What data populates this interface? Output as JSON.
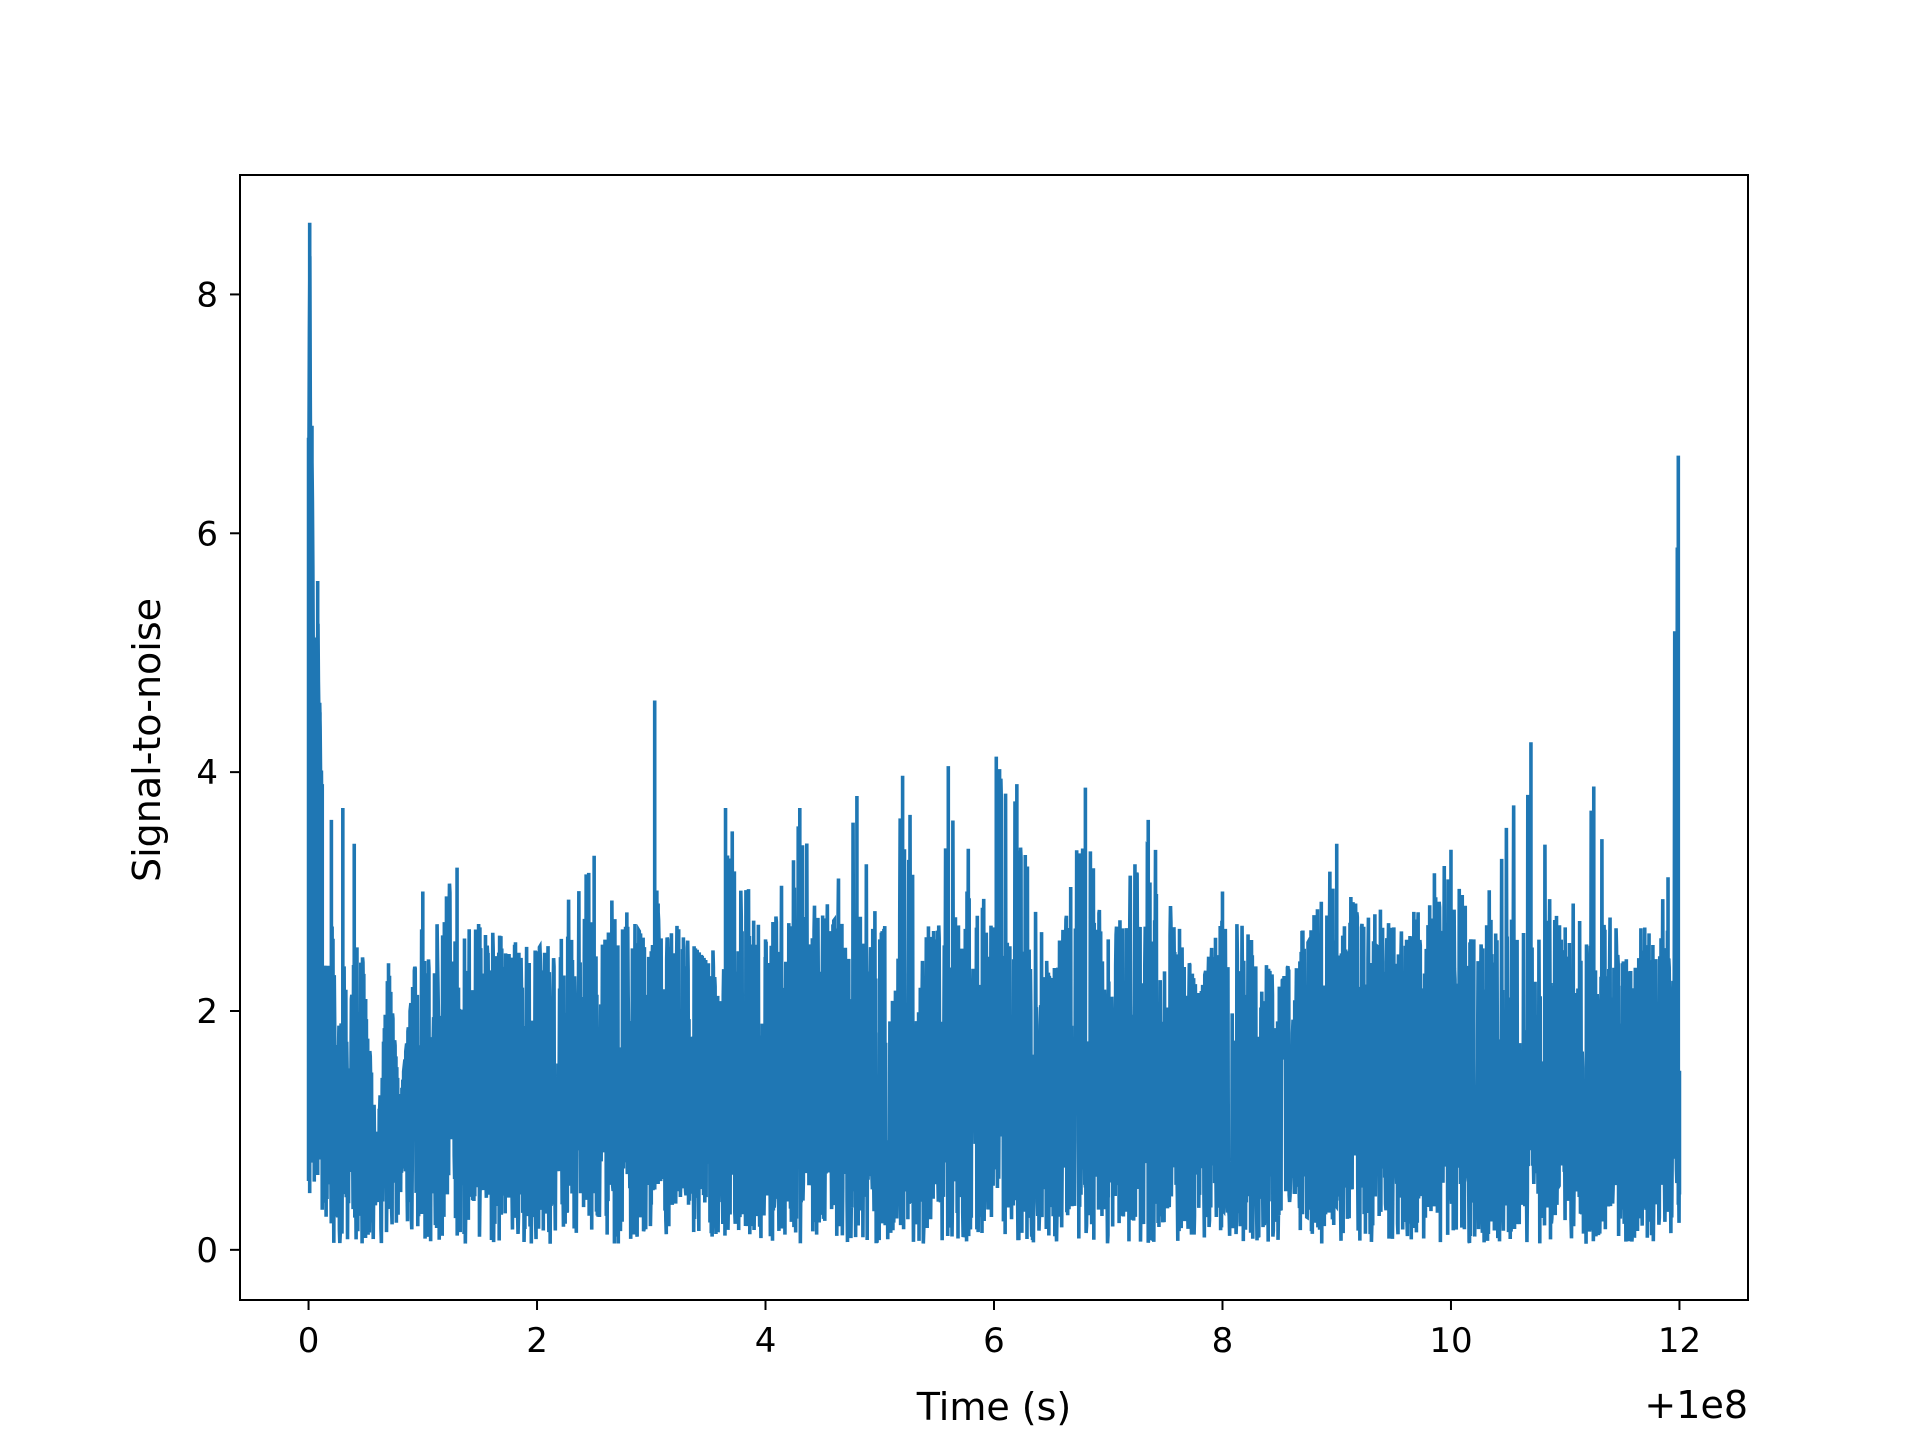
{
  "chart_data": {
    "type": "line",
    "title": "",
    "xlabel": "Time (s)",
    "ylabel": "Signal-to-noise",
    "x_offset_label": "+1e8",
    "xlim": [
      -0.6,
      12.6
    ],
    "ylim": [
      -0.42,
      9.0
    ],
    "x_ticks": [
      0,
      2,
      4,
      6,
      8,
      10,
      12
    ],
    "x_tick_labels": [
      "0",
      "2",
      "4",
      "6",
      "8",
      "10",
      "12"
    ],
    "y_ticks": [
      0,
      2,
      4,
      6,
      8
    ],
    "y_tick_labels": [
      "0",
      "2",
      "4",
      "6",
      "8"
    ],
    "grid": false,
    "line_color": "#1f77b4",
    "series": [
      {
        "x": [
          0.0,
          0.01,
          0.02,
          0.03,
          0.05,
          0.08,
          0.1,
          0.12,
          0.15,
          0.2,
          0.25,
          0.3,
          0.35,
          0.4,
          0.5,
          0.6,
          0.7,
          0.8,
          1.0,
          1.3,
          1.5,
          2.0,
          2.5,
          3.0,
          3.03,
          3.06,
          3.5,
          3.65,
          4.0,
          4.3,
          4.5,
          4.8,
          5.0,
          5.2,
          5.5,
          5.6,
          6.0,
          6.02,
          6.2,
          6.5,
          6.8,
          7.0,
          7.35,
          7.8,
          8.0,
          8.5,
          9.0,
          9.5,
          10.0,
          10.2,
          10.7,
          11.0,
          11.25,
          11.5,
          11.9,
          11.99,
          12.0
        ],
        "y": [
          6.8,
          8.6,
          6.4,
          6.9,
          4.4,
          5.6,
          4.5,
          3.9,
          2.0,
          3.6,
          1.0,
          3.7,
          0.8,
          3.4,
          2.1,
          0.9,
          2.4,
          1.2,
          3.0,
          3.2,
          2.7,
          2.5,
          3.3,
          2.5,
          4.6,
          2.9,
          2.4,
          3.7,
          2.6,
          3.7,
          2.8,
          3.8,
          2.6,
          3.97,
          2.6,
          4.05,
          2.7,
          4.13,
          3.9,
          2.2,
          3.87,
          2.6,
          3.6,
          2.1,
          3.0,
          2.2,
          3.4,
          2.7,
          3.35,
          2.6,
          4.25,
          2.7,
          3.88,
          2.4,
          3.12,
          6.65,
          1.5
        ]
      }
    ]
  }
}
